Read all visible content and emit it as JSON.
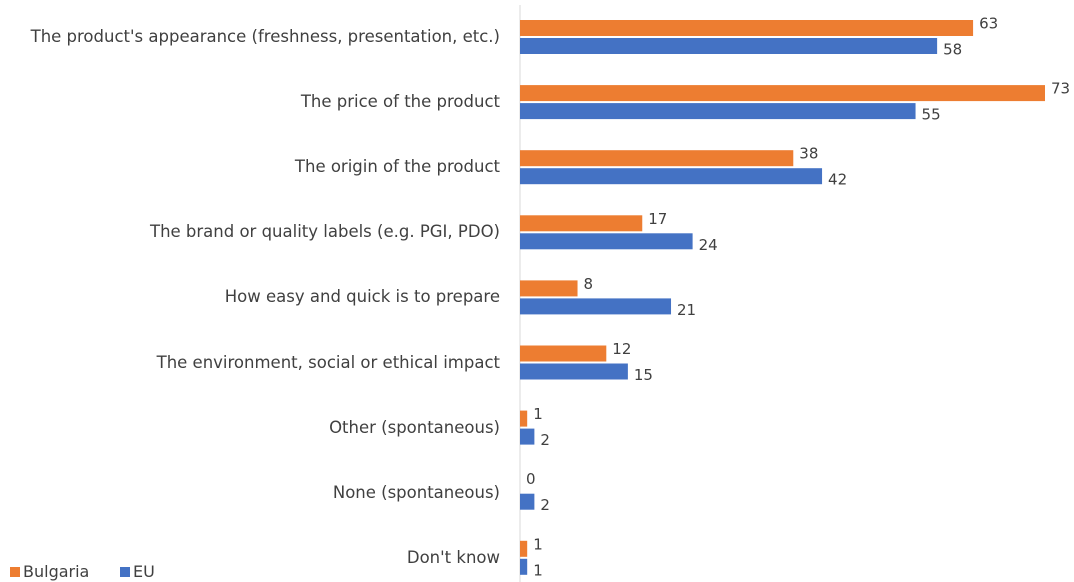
{
  "chart_data": {
    "type": "bar",
    "orientation": "horizontal",
    "categories": [
      "The product's appearance (freshness, presentation, etc.)",
      "The price of the product",
      "The origin of the product",
      "The brand or quality labels (e.g. PGI, PDO)",
      "How easy and quick is to prepare",
      "The environment, social or ethical impact",
      "Other (spontaneous)",
      "None (spontaneous)",
      "Don't know"
    ],
    "series": [
      {
        "name": "Bulgaria",
        "color": "#ED7D31",
        "values": [
          63,
          73,
          38,
          17,
          8,
          12,
          1,
          0,
          1
        ]
      },
      {
        "name": "EU",
        "color": "#4472C4",
        "values": [
          58,
          55,
          42,
          24,
          21,
          15,
          2,
          2,
          1
        ]
      }
    ],
    "xlim": [
      0,
      73
    ],
    "legend": "bottom-left"
  }
}
